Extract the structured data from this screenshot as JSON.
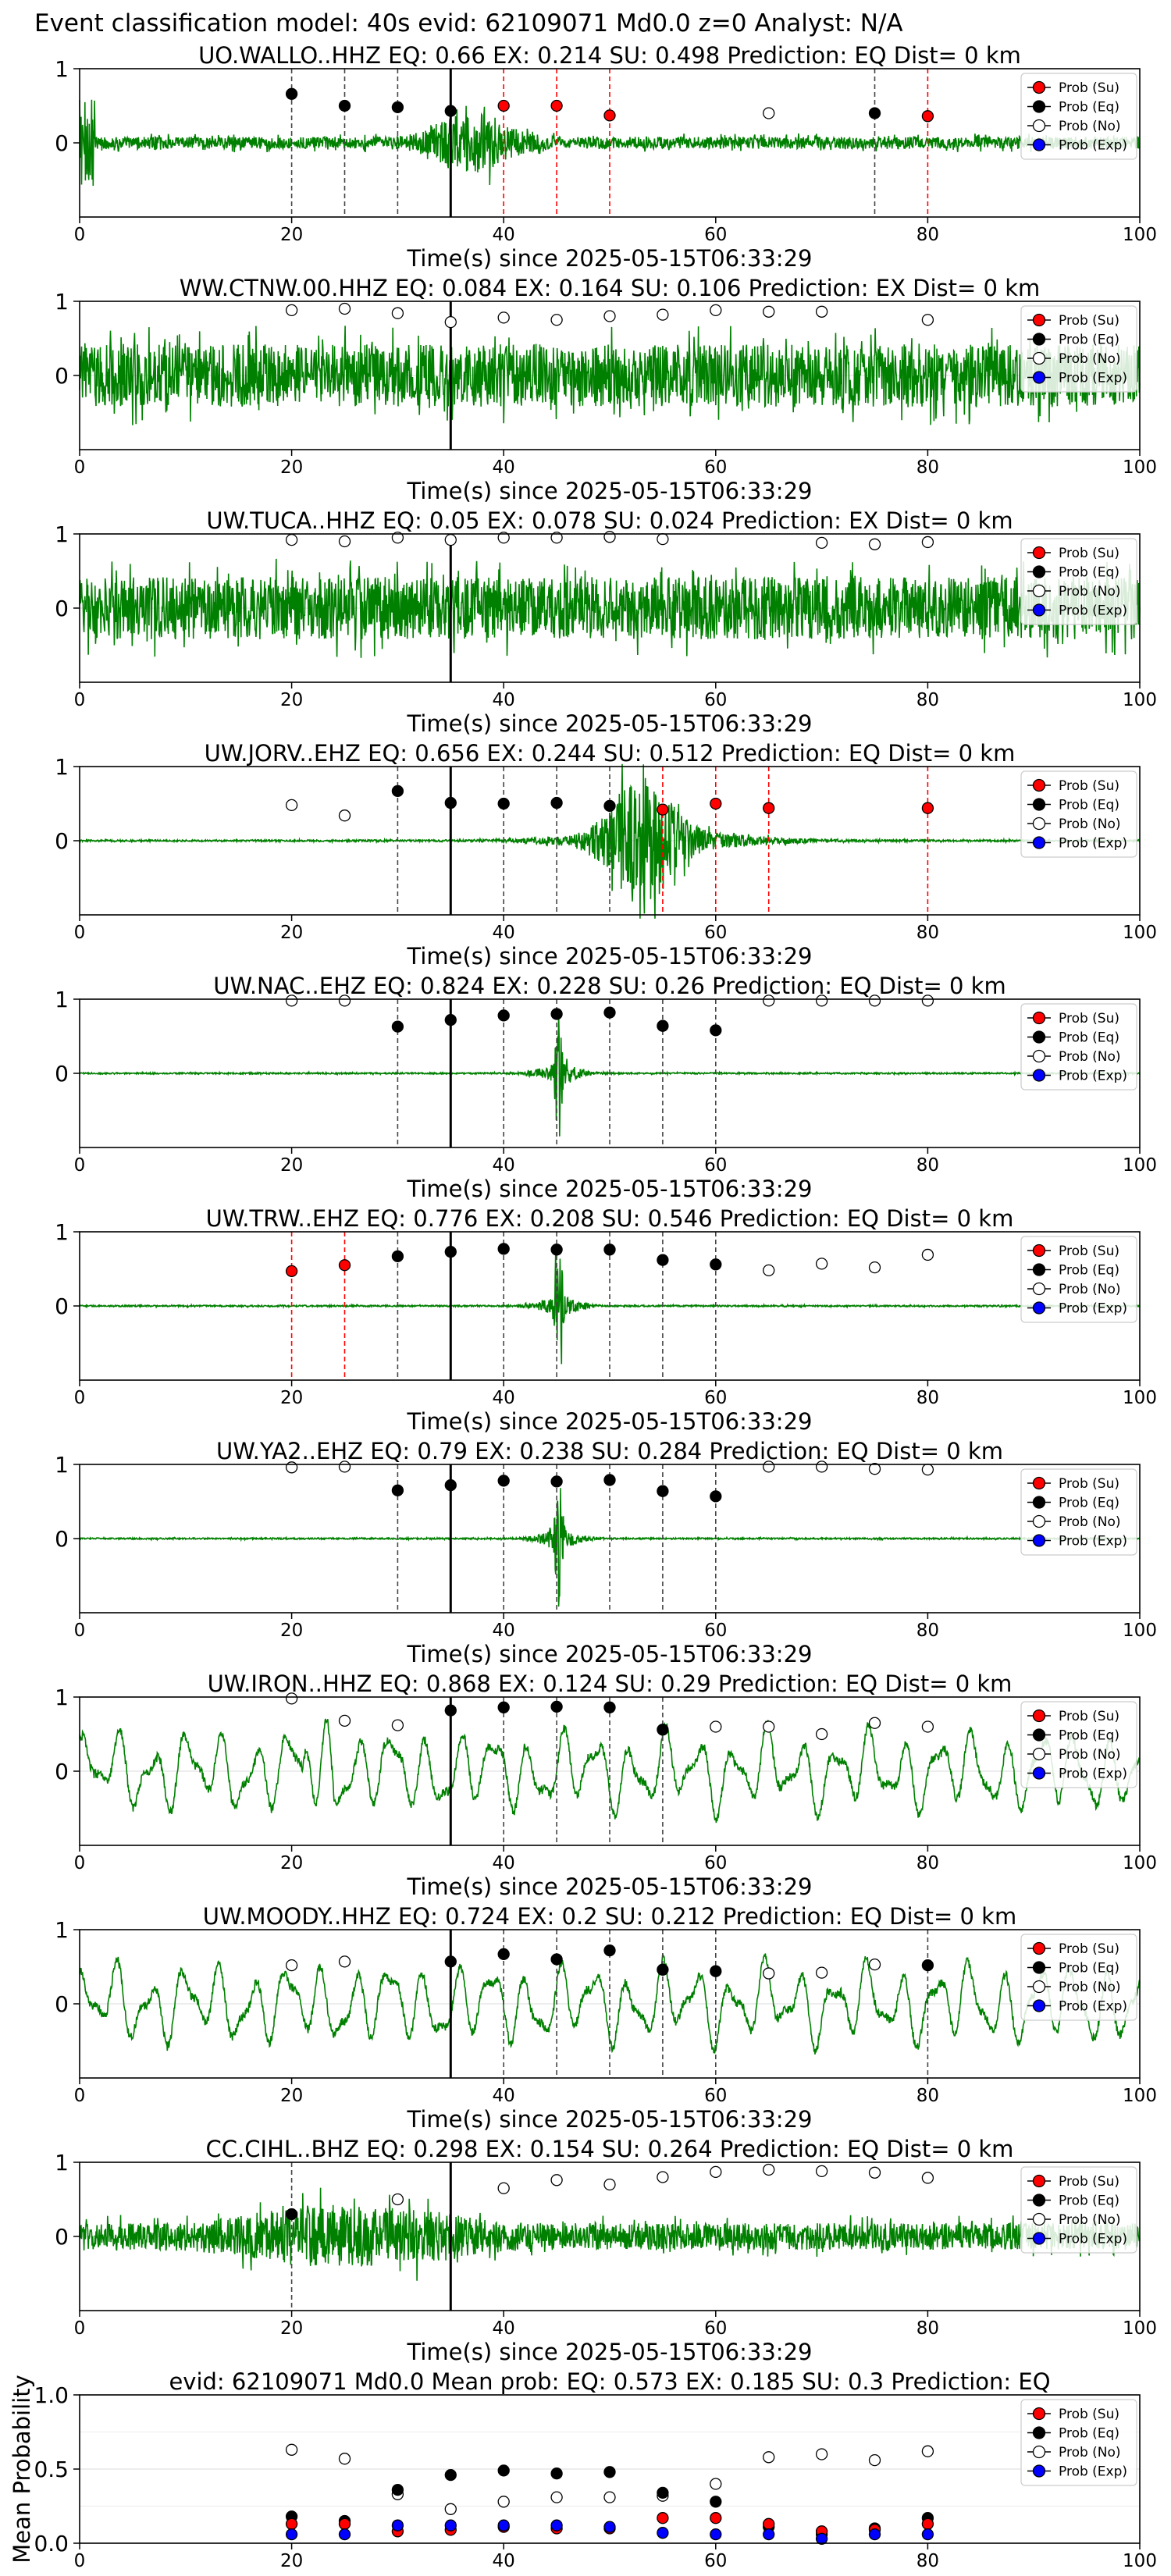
{
  "page_title": "Event classification model: 40s evid: 62109071 Md0.0 z=0 Analyst: N/A",
  "legend_labels": {
    "su": "Prob (Su)",
    "eq": "Prob (Eq)",
    "no": "Prob (No)",
    "exp": "Prob (Exp)"
  },
  "colors": {
    "trace": "#008000",
    "su": "#ff0000",
    "eq": "#000000",
    "no": "#ffffff",
    "exp": "#0000ff"
  },
  "chart_data": [
    {
      "type": "line",
      "title": "UO.WALLO..HHZ   EQ: 0.66  EX: 0.214  SU: 0.498   Prediction: EQ    Dist= 0 km",
      "xlabel": "Time(s) since 2025-05-15T06:33:29",
      "ylabel": "",
      "xlim": [
        0,
        100
      ],
      "ylim": [
        -1,
        1
      ],
      "x_ticks": [
        0,
        20,
        40,
        60,
        80,
        100
      ],
      "y_ticks": [
        0,
        1
      ],
      "waveform": "moderate-noisy",
      "p_time": 35,
      "legend": "right",
      "points": [
        {
          "t": 20,
          "v": 0.66,
          "cls": "eq"
        },
        {
          "t": 25,
          "v": 0.5,
          "cls": "eq"
        },
        {
          "t": 30,
          "v": 0.48,
          "cls": "eq"
        },
        {
          "t": 35,
          "v": 0.43,
          "cls": "eq"
        },
        {
          "t": 40,
          "v": 0.5,
          "cls": "su"
        },
        {
          "t": 45,
          "v": 0.5,
          "cls": "su"
        },
        {
          "t": 50,
          "v": 0.37,
          "cls": "su"
        },
        {
          "t": 65,
          "v": 0.4,
          "cls": "no"
        },
        {
          "t": 75,
          "v": 0.4,
          "cls": "eq"
        },
        {
          "t": 80,
          "v": 0.36,
          "cls": "su"
        }
      ]
    },
    {
      "type": "line",
      "title": "WW.CTNW.00.HHZ   EQ: 0.084  EX: 0.164  SU: 0.106   Prediction: EX    Dist= 0 km",
      "xlabel": "Time(s) since 2025-05-15T06:33:29",
      "ylabel": "",
      "xlim": [
        0,
        100
      ],
      "ylim": [
        -1,
        1
      ],
      "x_ticks": [
        0,
        20,
        40,
        60,
        80,
        100
      ],
      "y_ticks": [
        0,
        1
      ],
      "waveform": "noise-high",
      "p_time": 35,
      "legend": "right",
      "points": [
        {
          "t": 20,
          "v": 0.88,
          "cls": "no"
        },
        {
          "t": 25,
          "v": 0.9,
          "cls": "no"
        },
        {
          "t": 30,
          "v": 0.84,
          "cls": "no"
        },
        {
          "t": 35,
          "v": 0.72,
          "cls": "no"
        },
        {
          "t": 40,
          "v": 0.78,
          "cls": "no"
        },
        {
          "t": 45,
          "v": 0.75,
          "cls": "no"
        },
        {
          "t": 50,
          "v": 0.8,
          "cls": "no"
        },
        {
          "t": 55,
          "v": 0.82,
          "cls": "no"
        },
        {
          "t": 60,
          "v": 0.88,
          "cls": "no"
        },
        {
          "t": 65,
          "v": 0.86,
          "cls": "no"
        },
        {
          "t": 70,
          "v": 0.86,
          "cls": "no"
        },
        {
          "t": 80,
          "v": 0.75,
          "cls": "no"
        }
      ]
    },
    {
      "type": "line",
      "title": "UW.TUCA..HHZ   EQ: 0.05  EX: 0.078  SU: 0.024   Prediction: EX    Dist= 0 km",
      "xlabel": "Time(s) since 2025-05-15T06:33:29",
      "ylabel": "",
      "xlim": [
        0,
        100
      ],
      "ylim": [
        -1,
        1
      ],
      "x_ticks": [
        0,
        20,
        40,
        60,
        80,
        100
      ],
      "y_ticks": [
        0,
        1
      ],
      "waveform": "noise-high",
      "p_time": 35,
      "legend": "right",
      "points": [
        {
          "t": 20,
          "v": 0.92,
          "cls": "no"
        },
        {
          "t": 25,
          "v": 0.9,
          "cls": "no"
        },
        {
          "t": 30,
          "v": 0.95,
          "cls": "no"
        },
        {
          "t": 35,
          "v": 0.92,
          "cls": "no"
        },
        {
          "t": 40,
          "v": 0.95,
          "cls": "no"
        },
        {
          "t": 45,
          "v": 0.95,
          "cls": "no"
        },
        {
          "t": 50,
          "v": 0.96,
          "cls": "no"
        },
        {
          "t": 55,
          "v": 0.93,
          "cls": "no"
        },
        {
          "t": 70,
          "v": 0.88,
          "cls": "no"
        },
        {
          "t": 75,
          "v": 0.86,
          "cls": "no"
        },
        {
          "t": 80,
          "v": 0.89,
          "cls": "no"
        }
      ]
    },
    {
      "type": "line",
      "title": "UW.JORV..EHZ   EQ: 0.656  EX: 0.244  SU: 0.512   Prediction: EQ    Dist= 0 km",
      "xlabel": "Time(s) since 2025-05-15T06:33:29",
      "ylabel": "",
      "xlim": [
        0,
        100
      ],
      "ylim": [
        -1,
        1
      ],
      "x_ticks": [
        0,
        20,
        40,
        60,
        80,
        100
      ],
      "y_ticks": [
        0,
        1
      ],
      "waveform": "quiet-event-broad",
      "p_time": 35,
      "legend": "right",
      "points": [
        {
          "t": 20,
          "v": 0.48,
          "cls": "no"
        },
        {
          "t": 25,
          "v": 0.34,
          "cls": "no"
        },
        {
          "t": 30,
          "v": 0.67,
          "cls": "eq"
        },
        {
          "t": 35,
          "v": 0.51,
          "cls": "eq"
        },
        {
          "t": 40,
          "v": 0.5,
          "cls": "eq"
        },
        {
          "t": 45,
          "v": 0.51,
          "cls": "eq"
        },
        {
          "t": 50,
          "v": 0.47,
          "cls": "eq"
        },
        {
          "t": 55,
          "v": 0.42,
          "cls": "su"
        },
        {
          "t": 60,
          "v": 0.5,
          "cls": "su"
        },
        {
          "t": 65,
          "v": 0.44,
          "cls": "su"
        },
        {
          "t": 80,
          "v": 0.44,
          "cls": "su"
        }
      ]
    },
    {
      "type": "line",
      "title": "UW.NAC..EHZ   EQ: 0.824  EX: 0.228  SU: 0.26   Prediction: EQ    Dist= 0 km",
      "xlabel": "Time(s) since 2025-05-15T06:33:29",
      "ylabel": "",
      "xlim": [
        0,
        100
      ],
      "ylim": [
        -1,
        1
      ],
      "x_ticks": [
        0,
        20,
        40,
        60,
        80,
        100
      ],
      "y_ticks": [
        0,
        1
      ],
      "waveform": "quiet-spike",
      "p_time": 35,
      "legend": "right",
      "points": [
        {
          "t": 20,
          "v": 0.98,
          "cls": "no"
        },
        {
          "t": 25,
          "v": 0.98,
          "cls": "no"
        },
        {
          "t": 30,
          "v": 0.63,
          "cls": "eq"
        },
        {
          "t": 35,
          "v": 0.72,
          "cls": "eq"
        },
        {
          "t": 40,
          "v": 0.78,
          "cls": "eq"
        },
        {
          "t": 45,
          "v": 0.8,
          "cls": "eq"
        },
        {
          "t": 50,
          "v": 0.82,
          "cls": "eq"
        },
        {
          "t": 55,
          "v": 0.64,
          "cls": "eq"
        },
        {
          "t": 60,
          "v": 0.58,
          "cls": "eq"
        },
        {
          "t": 65,
          "v": 0.98,
          "cls": "no"
        },
        {
          "t": 70,
          "v": 0.98,
          "cls": "no"
        },
        {
          "t": 75,
          "v": 0.98,
          "cls": "no"
        },
        {
          "t": 80,
          "v": 0.98,
          "cls": "no"
        }
      ]
    },
    {
      "type": "line",
      "title": "UW.TRW..EHZ   EQ: 0.776  EX: 0.208  SU: 0.546   Prediction: EQ    Dist= 0 km",
      "xlabel": "Time(s) since 2025-05-15T06:33:29",
      "ylabel": "",
      "xlim": [
        0,
        100
      ],
      "ylim": [
        -1,
        1
      ],
      "x_ticks": [
        0,
        20,
        40,
        60,
        80,
        100
      ],
      "y_ticks": [
        0,
        1
      ],
      "waveform": "quiet-spike",
      "p_time": 35,
      "legend": "right",
      "points": [
        {
          "t": 20,
          "v": 0.47,
          "cls": "su"
        },
        {
          "t": 25,
          "v": 0.55,
          "cls": "su"
        },
        {
          "t": 30,
          "v": 0.67,
          "cls": "eq"
        },
        {
          "t": 35,
          "v": 0.73,
          "cls": "eq"
        },
        {
          "t": 40,
          "v": 0.77,
          "cls": "eq"
        },
        {
          "t": 45,
          "v": 0.76,
          "cls": "eq"
        },
        {
          "t": 50,
          "v": 0.76,
          "cls": "eq"
        },
        {
          "t": 55,
          "v": 0.62,
          "cls": "eq"
        },
        {
          "t": 60,
          "v": 0.56,
          "cls": "eq"
        },
        {
          "t": 65,
          "v": 0.48,
          "cls": "no"
        },
        {
          "t": 70,
          "v": 0.57,
          "cls": "no"
        },
        {
          "t": 75,
          "v": 0.52,
          "cls": "no"
        },
        {
          "t": 80,
          "v": 0.69,
          "cls": "no"
        }
      ]
    },
    {
      "type": "line",
      "title": "UW.YA2..EHZ   EQ: 0.79  EX: 0.238  SU: 0.284   Prediction: EQ    Dist= 0 km",
      "xlabel": "Time(s) since 2025-05-15T06:33:29",
      "ylabel": "",
      "xlim": [
        0,
        100
      ],
      "ylim": [
        -1,
        1
      ],
      "x_ticks": [
        0,
        20,
        40,
        60,
        80,
        100
      ],
      "y_ticks": [
        0,
        1
      ],
      "waveform": "quiet-spike",
      "p_time": 35,
      "legend": "right",
      "points": [
        {
          "t": 20,
          "v": 0.96,
          "cls": "no"
        },
        {
          "t": 25,
          "v": 0.97,
          "cls": "no"
        },
        {
          "t": 30,
          "v": 0.65,
          "cls": "eq"
        },
        {
          "t": 35,
          "v": 0.72,
          "cls": "eq"
        },
        {
          "t": 40,
          "v": 0.78,
          "cls": "eq"
        },
        {
          "t": 45,
          "v": 0.77,
          "cls": "eq"
        },
        {
          "t": 50,
          "v": 0.79,
          "cls": "eq"
        },
        {
          "t": 55,
          "v": 0.64,
          "cls": "eq"
        },
        {
          "t": 60,
          "v": 0.57,
          "cls": "eq"
        },
        {
          "t": 65,
          "v": 0.97,
          "cls": "no"
        },
        {
          "t": 70,
          "v": 0.97,
          "cls": "no"
        },
        {
          "t": 75,
          "v": 0.94,
          "cls": "no"
        },
        {
          "t": 80,
          "v": 0.93,
          "cls": "no"
        }
      ]
    },
    {
      "type": "line",
      "title": "UW.IRON..HHZ   EQ: 0.868  EX: 0.124  SU: 0.29   Prediction: EQ    Dist= 0 km",
      "xlabel": "Time(s) since 2025-05-15T06:33:29",
      "ylabel": "",
      "xlim": [
        0,
        100
      ],
      "ylim": [
        -1,
        1
      ],
      "x_ticks": [
        0,
        20,
        40,
        60,
        80,
        100
      ],
      "y_ticks": [
        0,
        1
      ],
      "waveform": "long-period",
      "p_time": 35,
      "legend": "right",
      "points": [
        {
          "t": 20,
          "v": 0.98,
          "cls": "no"
        },
        {
          "t": 25,
          "v": 0.68,
          "cls": "no"
        },
        {
          "t": 30,
          "v": 0.62,
          "cls": "no"
        },
        {
          "t": 35,
          "v": 0.82,
          "cls": "eq"
        },
        {
          "t": 40,
          "v": 0.86,
          "cls": "eq"
        },
        {
          "t": 45,
          "v": 0.87,
          "cls": "eq"
        },
        {
          "t": 50,
          "v": 0.86,
          "cls": "eq"
        },
        {
          "t": 55,
          "v": 0.56,
          "cls": "eq"
        },
        {
          "t": 60,
          "v": 0.6,
          "cls": "no"
        },
        {
          "t": 65,
          "v": 0.6,
          "cls": "no"
        },
        {
          "t": 70,
          "v": 0.5,
          "cls": "no"
        },
        {
          "t": 75,
          "v": 0.65,
          "cls": "no"
        },
        {
          "t": 80,
          "v": 0.6,
          "cls": "no"
        }
      ]
    },
    {
      "type": "line",
      "title": "UW.MOODY..HHZ   EQ: 0.724  EX: 0.2  SU: 0.212   Prediction: EQ    Dist= 0 km",
      "xlabel": "Time(s) since 2025-05-15T06:33:29",
      "ylabel": "",
      "xlim": [
        0,
        100
      ],
      "ylim": [
        -1,
        1
      ],
      "x_ticks": [
        0,
        20,
        40,
        60,
        80,
        100
      ],
      "y_ticks": [
        0,
        1
      ],
      "waveform": "long-period",
      "p_time": 35,
      "legend": "right",
      "points": [
        {
          "t": 20,
          "v": 0.52,
          "cls": "no"
        },
        {
          "t": 25,
          "v": 0.57,
          "cls": "no"
        },
        {
          "t": 35,
          "v": 0.57,
          "cls": "eq"
        },
        {
          "t": 40,
          "v": 0.67,
          "cls": "eq"
        },
        {
          "t": 45,
          "v": 0.6,
          "cls": "eq"
        },
        {
          "t": 50,
          "v": 0.72,
          "cls": "eq"
        },
        {
          "t": 55,
          "v": 0.46,
          "cls": "eq"
        },
        {
          "t": 60,
          "v": 0.44,
          "cls": "eq"
        },
        {
          "t": 65,
          "v": 0.41,
          "cls": "no"
        },
        {
          "t": 70,
          "v": 0.42,
          "cls": "no"
        },
        {
          "t": 75,
          "v": 0.53,
          "cls": "no"
        },
        {
          "t": 80,
          "v": 0.52,
          "cls": "eq"
        }
      ]
    },
    {
      "type": "line",
      "title": "CC.CIHL..BHZ   EQ: 0.298  EX: 0.154  SU: 0.264   Prediction: EQ    Dist= 0 km",
      "xlabel": "Time(s) since 2025-05-15T06:33:29",
      "ylabel": "",
      "xlim": [
        0,
        100
      ],
      "ylim": [
        -1,
        1
      ],
      "x_ticks": [
        0,
        20,
        40,
        60,
        80,
        100
      ],
      "y_ticks": [
        0,
        1
      ],
      "waveform": "noise-mid",
      "p_time": 35,
      "legend": "right",
      "points": [
        {
          "t": 20,
          "v": 0.3,
          "cls": "eq"
        },
        {
          "t": 30,
          "v": 0.5,
          "cls": "no"
        },
        {
          "t": 40,
          "v": 0.65,
          "cls": "no"
        },
        {
          "t": 45,
          "v": 0.76,
          "cls": "no"
        },
        {
          "t": 50,
          "v": 0.7,
          "cls": "no"
        },
        {
          "t": 55,
          "v": 0.8,
          "cls": "no"
        },
        {
          "t": 60,
          "v": 0.87,
          "cls": "no"
        },
        {
          "t": 65,
          "v": 0.9,
          "cls": "no"
        },
        {
          "t": 70,
          "v": 0.88,
          "cls": "no"
        },
        {
          "t": 75,
          "v": 0.86,
          "cls": "no"
        },
        {
          "t": 80,
          "v": 0.79,
          "cls": "no"
        }
      ]
    },
    {
      "type": "scatter",
      "title": "evid: 62109071  Md0.0   Mean prob:   EQ: 0.573  EX: 0.185  SU: 0.3   Prediction: EQ",
      "xlabel": "",
      "ylabel": "Mean Probability",
      "xlim": [
        0,
        100
      ],
      "ylim": [
        0,
        1
      ],
      "x_ticks": [
        0,
        20,
        40,
        60,
        80,
        100
      ],
      "y_ticks": [
        0.0,
        0.5,
        1.0
      ],
      "y_tick_labels": [
        "0.0",
        "0.5",
        "1.0"
      ],
      "legend": "right",
      "x": [
        20,
        25,
        30,
        35,
        40,
        45,
        50,
        55,
        60,
        65,
        70,
        75,
        80
      ],
      "series": [
        {
          "name": "Prob (No)",
          "cls": "no",
          "values": [
            0.63,
            0.57,
            0.33,
            0.23,
            0.28,
            0.31,
            0.31,
            0.32,
            0.4,
            0.58,
            0.6,
            0.56,
            0.62
          ]
        },
        {
          "name": "Prob (Eq)",
          "cls": "eq",
          "values": [
            0.18,
            0.15,
            0.36,
            0.46,
            0.49,
            0.47,
            0.48,
            0.34,
            0.28,
            0.11,
            0.06,
            0.1,
            0.17
          ]
        },
        {
          "name": "Prob (Su)",
          "cls": "su",
          "values": [
            0.13,
            0.13,
            0.08,
            0.09,
            0.11,
            0.1,
            0.1,
            0.17,
            0.17,
            0.13,
            0.08,
            0.09,
            0.13
          ]
        },
        {
          "name": "Prob (Exp)",
          "cls": "exp",
          "values": [
            0.06,
            0.06,
            0.12,
            0.12,
            0.12,
            0.12,
            0.11,
            0.07,
            0.06,
            0.06,
            0.03,
            0.06,
            0.06
          ]
        }
      ]
    }
  ]
}
